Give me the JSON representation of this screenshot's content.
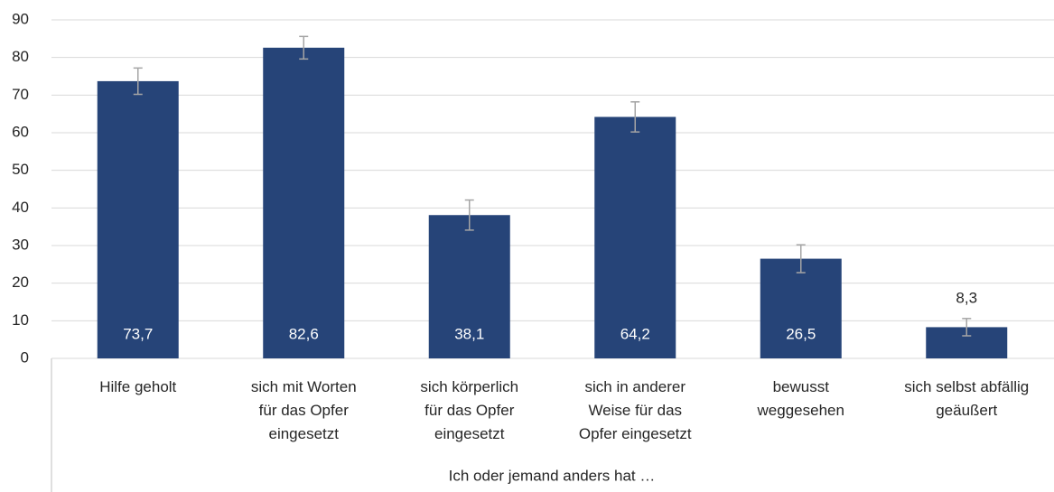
{
  "chart_data": {
    "type": "bar",
    "categories": [
      "Hilfe geholt",
      "sich mit Worten\nfür das Opfer\neingesetzt",
      "sich körperlich\nfür das Opfer\neingesetzt",
      "sich in anderer\nWeise für das\nOpfer eingesetzt",
      "bewusst\nweggesehen",
      "sich selbst abfällig\ngeäußert"
    ],
    "values": [
      73.7,
      82.6,
      38.1,
      64.2,
      26.5,
      8.3
    ],
    "value_labels": [
      "73,7",
      "82,6",
      "38,1",
      "64,2",
      "26,5",
      "8,3"
    ],
    "errors": [
      3.5,
      3.0,
      4.0,
      4.0,
      3.7,
      2.3
    ],
    "color": "#264478",
    "error_color": "#a5a5a5",
    "x_label": "Ich oder jemand anders hat …",
    "ylim": [
      0,
      90
    ],
    "yticks": [
      0,
      10,
      20,
      30,
      40,
      50,
      60,
      70,
      80,
      90
    ],
    "grid": true
  }
}
